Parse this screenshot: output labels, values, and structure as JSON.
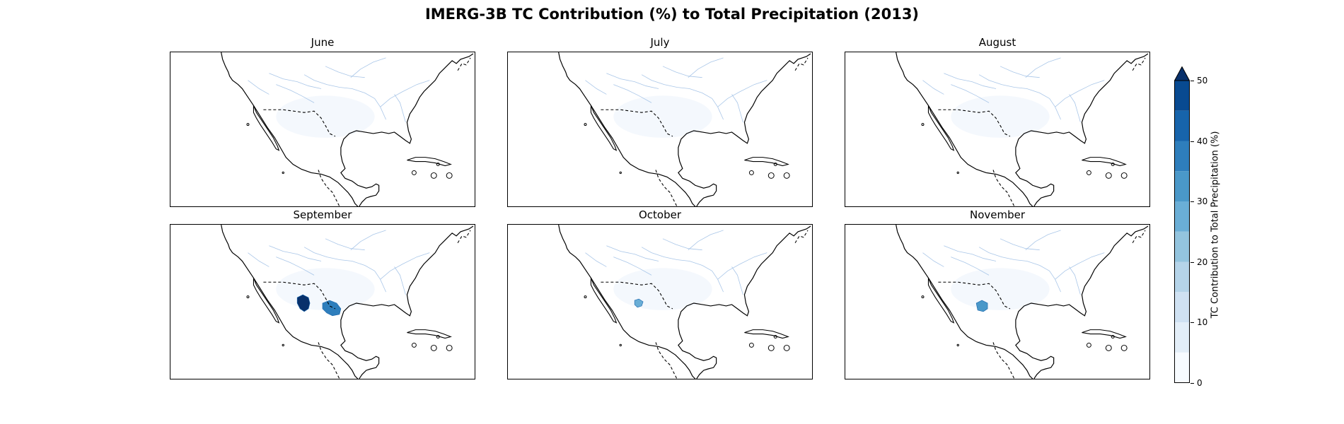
{
  "title": "IMERG-3B TC Contribution (%) to Total Precipitation (2013)",
  "panels": [
    {
      "name": "June",
      "hotspots": []
    },
    {
      "name": "July",
      "hotspots": []
    },
    {
      "name": "August",
      "hotspots": []
    },
    {
      "name": "September",
      "hotspots": [
        "sierra-madre-occidental-high",
        "northeast-mexico-high"
      ]
    },
    {
      "name": "October",
      "hotspots": [
        "sierra-madre-occidental-moderate"
      ]
    },
    {
      "name": "November",
      "hotspots": [
        "central-mexico-moderate"
      ]
    }
  ],
  "colorbar": {
    "label": "TC Contribution to Total Precipitation (%)",
    "ticks": [
      "0",
      "10",
      "20",
      "30",
      "40",
      "50"
    ],
    "levels": [
      0,
      5,
      10,
      15,
      20,
      25,
      30,
      35,
      40,
      45,
      50
    ],
    "colors": [
      "#f7fbff",
      "#e3eef8",
      "#cfe1f2",
      "#b5d4e9",
      "#93c4de",
      "#6aaed6",
      "#4a98c9",
      "#2e7ebc",
      "#1764ab",
      "#084a91",
      "#08306b"
    ],
    "extend": "max"
  },
  "map_colors": {
    "coast": "#000000",
    "border": "#000000",
    "rivers": "#a9c6e8",
    "background_wash": "#f3f7fd"
  }
}
